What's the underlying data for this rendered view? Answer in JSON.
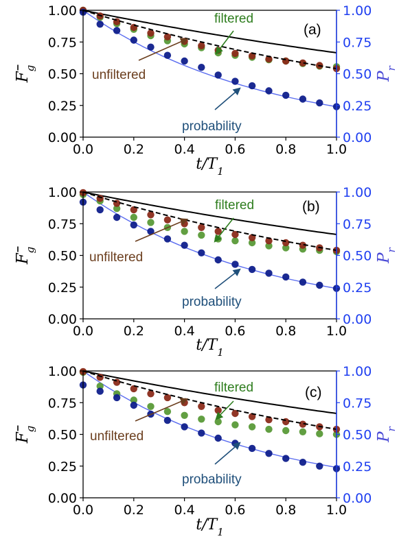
{
  "figure": {
    "x_label": "t/T",
    "x_label_sub": "1",
    "y_left_label": "F",
    "y_left_label_sub": "g",
    "y_right_label": "P",
    "y_right_label_sub": "r",
    "x_ticks": [
      "0.0",
      "0.2",
      "0.4",
      "0.6",
      "0.8",
      "1.0"
    ],
    "y_ticks": [
      "0.00",
      "0.25",
      "0.50",
      "0.75",
      "1.00"
    ],
    "colors": {
      "unfiltered_markers": "#8b2b1a",
      "filtered_markers": "#5a9a38",
      "probability_markers": "#0f1f8c",
      "black_curve": "#000000",
      "blue_curve": "#5a6cf0",
      "right_axis": "#1f3ff0",
      "unfiltered_text": "#6b3e1e",
      "filtered_text": "#2e7d1e",
      "probability_text": "#1f4f7a"
    }
  },
  "chart_data": [
    {
      "type": "scatter",
      "panel_label": "(a)",
      "x_label": "t/T1",
      "y_label_left": "F̄g",
      "y_label_right": "Pr",
      "xlim": [
        0,
        1
      ],
      "ylim": [
        0,
        1
      ],
      "annotations": [
        "filtered",
        "unfiltered",
        "probability"
      ],
      "series": [
        {
          "name": "unfiltered",
          "x": [
            0,
            0.067,
            0.133,
            0.2,
            0.267,
            0.333,
            0.4,
            0.467,
            0.533,
            0.6,
            0.667,
            0.733,
            0.8,
            0.867,
            0.933,
            1.0
          ],
          "y": [
            1.0,
            0.955,
            0.91,
            0.865,
            0.82,
            0.79,
            0.755,
            0.72,
            0.685,
            0.66,
            0.64,
            0.615,
            0.6,
            0.585,
            0.565,
            0.54
          ]
        },
        {
          "name": "filtered",
          "x": [
            0,
            0.067,
            0.133,
            0.2,
            0.267,
            0.333,
            0.4,
            0.467,
            0.533,
            0.6,
            0.667,
            0.733,
            0.8,
            0.867,
            0.933,
            1.0
          ],
          "y": [
            1.0,
            0.945,
            0.895,
            0.85,
            0.8,
            0.76,
            0.735,
            0.705,
            0.665,
            0.645,
            0.63,
            0.61,
            0.6,
            0.58,
            0.56,
            0.555
          ]
        },
        {
          "name": "probability",
          "x": [
            0,
            0.067,
            0.133,
            0.2,
            0.267,
            0.333,
            0.4,
            0.467,
            0.533,
            0.6,
            0.667,
            0.733,
            0.8,
            0.867,
            0.933,
            1.0
          ],
          "y": [
            0.985,
            0.89,
            0.84,
            0.765,
            0.71,
            0.645,
            0.6,
            0.55,
            0.49,
            0.44,
            0.405,
            0.365,
            0.33,
            0.3,
            0.27,
            0.24
          ]
        }
      ],
      "curves": {
        "black_solid_end": 0.665,
        "black_dashed_end": 0.54,
        "blue_end": 0.24
      }
    },
    {
      "type": "scatter",
      "panel_label": "(b)",
      "x_label": "t/T1",
      "y_label_left": "F̄g",
      "y_label_right": "Pr",
      "xlim": [
        0,
        1
      ],
      "ylim": [
        0,
        1
      ],
      "annotations": [
        "filtered",
        "unfiltered",
        "probability"
      ],
      "series": [
        {
          "name": "unfiltered",
          "x": [
            0,
            0.067,
            0.133,
            0.2,
            0.267,
            0.333,
            0.4,
            0.467,
            0.533,
            0.6,
            0.667,
            0.733,
            0.8,
            0.867,
            0.933,
            1.0
          ],
          "y": [
            0.995,
            0.95,
            0.91,
            0.86,
            0.82,
            0.78,
            0.75,
            0.72,
            0.69,
            0.665,
            0.64,
            0.615,
            0.6,
            0.58,
            0.56,
            0.54
          ]
        },
        {
          "name": "filtered",
          "x": [
            0,
            0.067,
            0.133,
            0.2,
            0.267,
            0.333,
            0.4,
            0.467,
            0.533,
            0.6,
            0.667,
            0.733,
            0.8,
            0.867,
            0.933,
            1.0
          ],
          "y": [
            0.98,
            0.93,
            0.87,
            0.8,
            0.76,
            0.72,
            0.69,
            0.66,
            0.63,
            0.615,
            0.6,
            0.575,
            0.56,
            0.55,
            0.54,
            0.53
          ]
        },
        {
          "name": "probability",
          "x": [
            0,
            0.067,
            0.133,
            0.2,
            0.267,
            0.333,
            0.4,
            0.467,
            0.533,
            0.6,
            0.667,
            0.733,
            0.8,
            0.867,
            0.933,
            1.0
          ],
          "y": [
            0.92,
            0.86,
            0.8,
            0.74,
            0.69,
            0.63,
            0.58,
            0.52,
            0.465,
            0.43,
            0.39,
            0.36,
            0.33,
            0.29,
            0.265,
            0.24
          ]
        }
      ],
      "curves": {
        "black_solid_end": 0.665,
        "black_dashed_end": 0.54,
        "blue_end": 0.24
      }
    },
    {
      "type": "scatter",
      "panel_label": "(c)",
      "x_label": "t/T1",
      "y_label_left": "F̄g",
      "y_label_right": "Pr",
      "xlim": [
        0,
        1
      ],
      "ylim": [
        0,
        1
      ],
      "annotations": [
        "filtered",
        "unfiltered",
        "probability"
      ],
      "series": [
        {
          "name": "unfiltered",
          "x": [
            0,
            0.067,
            0.133,
            0.2,
            0.267,
            0.333,
            0.4,
            0.467,
            0.533,
            0.6,
            0.667,
            0.733,
            0.8,
            0.867,
            0.933,
            1.0
          ],
          "y": [
            0.995,
            0.95,
            0.91,
            0.86,
            0.82,
            0.79,
            0.75,
            0.72,
            0.69,
            0.665,
            0.64,
            0.615,
            0.6,
            0.58,
            0.56,
            0.54
          ]
        },
        {
          "name": "filtered",
          "x": [
            0,
            0.067,
            0.133,
            0.2,
            0.267,
            0.333,
            0.4,
            0.467,
            0.533,
            0.6,
            0.667,
            0.733,
            0.8,
            0.867,
            0.933,
            1.0
          ],
          "y": [
            0.99,
            0.88,
            0.82,
            0.77,
            0.72,
            0.68,
            0.65,
            0.62,
            0.6,
            0.575,
            0.56,
            0.54,
            0.53,
            0.52,
            0.505,
            0.5
          ]
        },
        {
          "name": "probability",
          "x": [
            0,
            0.067,
            0.133,
            0.2,
            0.267,
            0.333,
            0.4,
            0.467,
            0.533,
            0.6,
            0.667,
            0.733,
            0.8,
            0.867,
            0.933,
            1.0
          ],
          "y": [
            0.89,
            0.84,
            0.79,
            0.73,
            0.66,
            0.61,
            0.56,
            0.51,
            0.47,
            0.43,
            0.39,
            0.35,
            0.31,
            0.28,
            0.25,
            0.23
          ]
        }
      ],
      "curves": {
        "black_solid_end": 0.665,
        "black_dashed_end": 0.54,
        "blue_end": 0.24
      }
    }
  ]
}
